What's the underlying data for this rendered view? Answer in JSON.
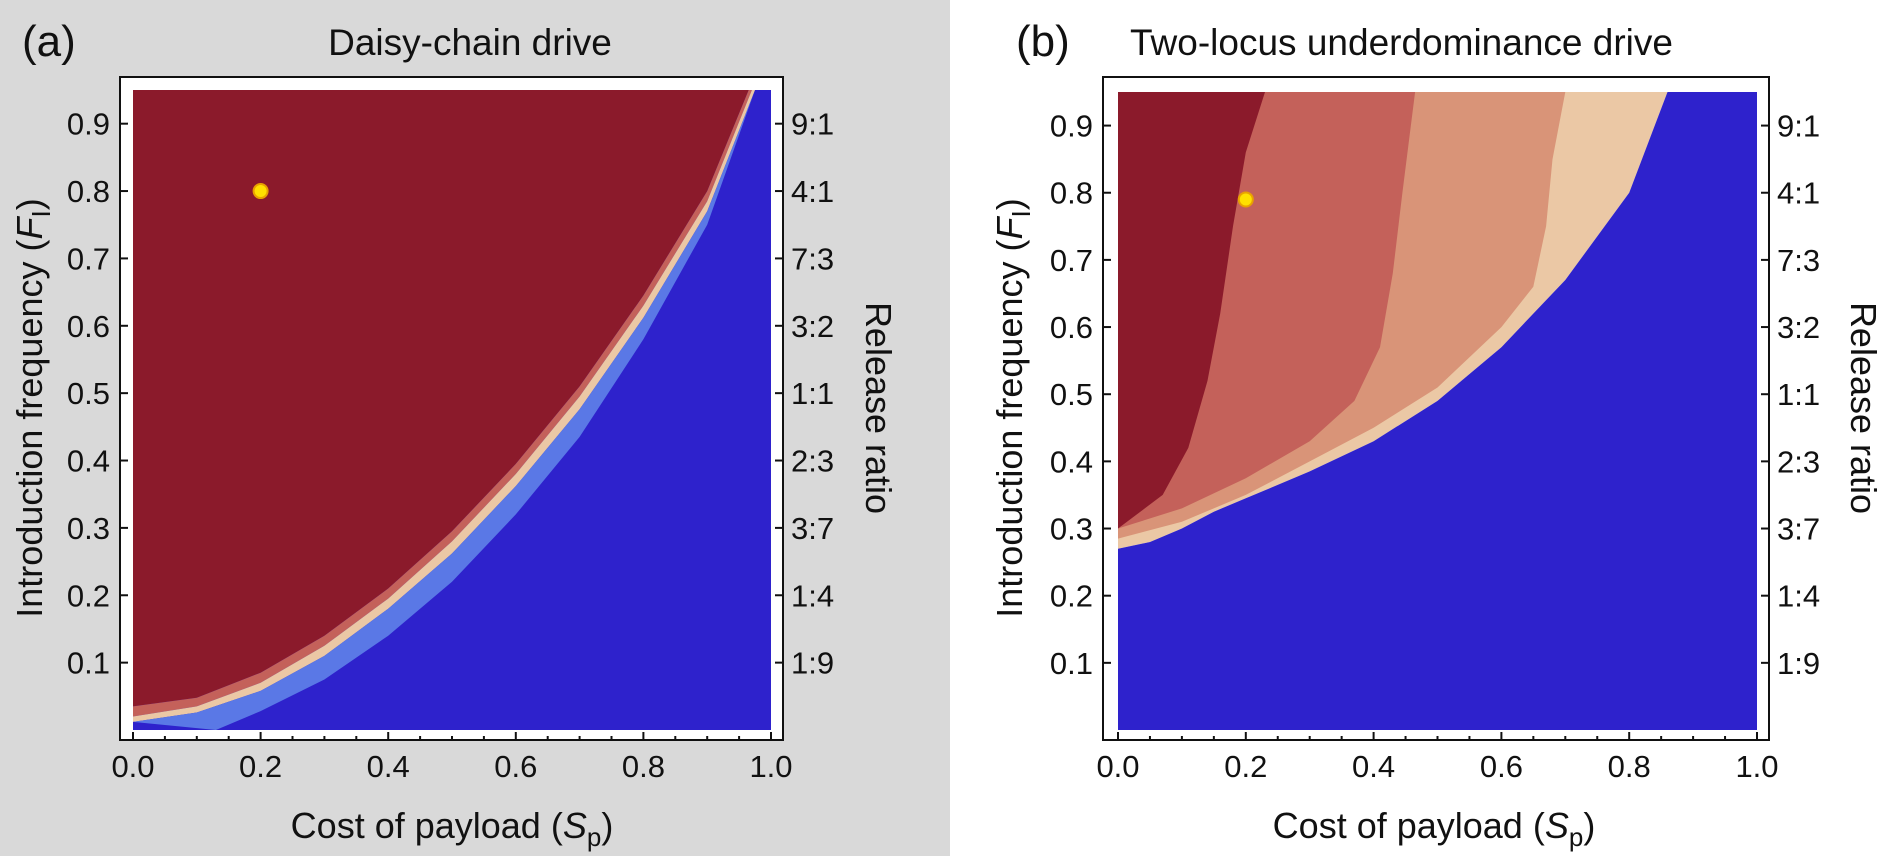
{
  "colors": {
    "panel_a_background": "#d9d9d9",
    "panel_b_background": "#ffffff",
    "band_darkest": "#8b1a2b",
    "band_medium": "#c4615a",
    "band_light": "#d99478",
    "band_lightest": "#ebc8a5",
    "loss_blue": "#2e22cc",
    "loss_blue_light": "#5a78e6",
    "marker": "#ffe000",
    "marker_edge": "#e8a200"
  },
  "chart_data": [
    {
      "type": "heatmap",
      "panel_label": "(a)",
      "title": "Daisy-chain drive",
      "xlabel_prefix": "Cost of payload (",
      "xlabel_symbol": "S",
      "xlabel_subscript": "p",
      "xlabel_suffix": ")",
      "ylabel_prefix": "Introduction frequency (",
      "ylabel_symbol": "F",
      "ylabel_subscript": "I",
      "ylabel_suffix": ")",
      "y2label": "Release ratio",
      "xlim": [
        0,
        1
      ],
      "ylim": [
        0,
        0.95
      ],
      "x_ticks": [
        0.0,
        0.2,
        0.4,
        0.6,
        0.8,
        1.0
      ],
      "x_tick_labels": [
        "0.0",
        "0.2",
        "0.4",
        "0.6",
        "0.8",
        "1.0"
      ],
      "y_ticks": [
        0.1,
        0.2,
        0.3,
        0.4,
        0.5,
        0.6,
        0.7,
        0.8,
        0.9
      ],
      "y_tick_labels": [
        "0.1",
        "0.2",
        "0.3",
        "0.4",
        "0.5",
        "0.6",
        "0.7",
        "0.8",
        "0.9"
      ],
      "y2_tick_labels": [
        "1:9",
        "1:4",
        "3:7",
        "2:3",
        "1:1",
        "3:2",
        "7:3",
        "4:1",
        "9:1"
      ],
      "regions": [
        {
          "color": "#8b1a2b",
          "upper": [
            [
              0,
              0.95
            ],
            [
              1,
              0.95
            ]
          ],
          "lower": [
            [
              0,
              0.035
            ],
            [
              0.1,
              0.048
            ],
            [
              0.2,
              0.085
            ],
            [
              0.3,
              0.14
            ],
            [
              0.4,
              0.21
            ],
            [
              0.5,
              0.295
            ],
            [
              0.6,
              0.395
            ],
            [
              0.7,
              0.51
            ],
            [
              0.8,
              0.645
            ],
            [
              0.9,
              0.8
            ],
            [
              0.965,
              0.95
            ]
          ]
        },
        {
          "color": "#c4615a",
          "upper": [
            [
              0,
              0.035
            ],
            [
              0.1,
              0.048
            ],
            [
              0.2,
              0.085
            ],
            [
              0.3,
              0.14
            ],
            [
              0.4,
              0.21
            ],
            [
              0.5,
              0.295
            ],
            [
              0.6,
              0.395
            ],
            [
              0.7,
              0.51
            ],
            [
              0.8,
              0.645
            ],
            [
              0.9,
              0.8
            ],
            [
              0.965,
              0.95
            ]
          ],
          "lower": [
            [
              0,
              0.02
            ],
            [
              0.1,
              0.035
            ],
            [
              0.2,
              0.07
            ],
            [
              0.3,
              0.125
            ],
            [
              0.4,
              0.195
            ],
            [
              0.5,
              0.28
            ],
            [
              0.6,
              0.38
            ],
            [
              0.7,
              0.495
            ],
            [
              0.8,
              0.63
            ],
            [
              0.9,
              0.785
            ],
            [
              0.97,
              0.95
            ]
          ]
        },
        {
          "color": "#ebc8a5",
          "upper": [
            [
              0,
              0.02
            ],
            [
              0.1,
              0.035
            ],
            [
              0.2,
              0.07
            ],
            [
              0.3,
              0.125
            ],
            [
              0.4,
              0.195
            ],
            [
              0.5,
              0.28
            ],
            [
              0.6,
              0.38
            ],
            [
              0.7,
              0.495
            ],
            [
              0.8,
              0.63
            ],
            [
              0.9,
              0.785
            ],
            [
              0.97,
              0.95
            ]
          ],
          "lower": [
            [
              0,
              0.012
            ],
            [
              0.1,
              0.026
            ],
            [
              0.2,
              0.058
            ],
            [
              0.3,
              0.11
            ],
            [
              0.4,
              0.18
            ],
            [
              0.5,
              0.262
            ],
            [
              0.6,
              0.362
            ],
            [
              0.7,
              0.476
            ],
            [
              0.8,
              0.612
            ],
            [
              0.9,
              0.77
            ],
            [
              0.975,
              0.95
            ]
          ]
        },
        {
          "color": "#5a78e6",
          "upper": [
            [
              0,
              0.012
            ],
            [
              0.1,
              0.026
            ],
            [
              0.2,
              0.058
            ],
            [
              0.3,
              0.11
            ],
            [
              0.4,
              0.18
            ],
            [
              0.5,
              0.262
            ],
            [
              0.6,
              0.362
            ],
            [
              0.7,
              0.476
            ],
            [
              0.8,
              0.612
            ],
            [
              0.9,
              0.77
            ],
            [
              0.975,
              0.95
            ]
          ],
          "lower": [
            [
              0.13,
              0.0
            ],
            [
              0.2,
              0.028
            ],
            [
              0.3,
              0.075
            ],
            [
              0.4,
              0.14
            ],
            [
              0.5,
              0.22
            ],
            [
              0.6,
              0.32
            ],
            [
              0.7,
              0.435
            ],
            [
              0.8,
              0.58
            ],
            [
              0.9,
              0.75
            ],
            [
              0.975,
              0.95
            ]
          ]
        }
      ],
      "marker": {
        "x": 0.2,
        "y": 0.8
      }
    },
    {
      "type": "heatmap",
      "panel_label": "(b)",
      "title": "Two-locus  underdominance drive",
      "xlabel_prefix": "Cost of payload (",
      "xlabel_symbol": "S",
      "xlabel_subscript": "p",
      "xlabel_suffix": ")",
      "ylabel_prefix": "Introduction frequency (",
      "ylabel_symbol": "F",
      "ylabel_subscript": "I",
      "ylabel_suffix": ")",
      "y2label": "Release ratio",
      "xlim": [
        0,
        1
      ],
      "ylim": [
        0,
        0.95
      ],
      "x_ticks": [
        0.0,
        0.2,
        0.4,
        0.6,
        0.8,
        1.0
      ],
      "x_tick_labels": [
        "0.0",
        "0.2",
        "0.4",
        "0.6",
        "0.8",
        "1.0"
      ],
      "y_ticks": [
        0.1,
        0.2,
        0.3,
        0.4,
        0.5,
        0.6,
        0.7,
        0.8,
        0.9
      ],
      "y_tick_labels": [
        "0.1",
        "0.2",
        "0.3",
        "0.4",
        "0.5",
        "0.6",
        "0.7",
        "0.8",
        "0.9"
      ],
      "y2_tick_labels": [
        "1:9",
        "1:4",
        "3:7",
        "2:3",
        "1:1",
        "3:2",
        "7:3",
        "4:1",
        "9:1"
      ],
      "regions": [
        {
          "color": "#ebc8a5",
          "upper": [
            [
              0,
              0.95
            ],
            [
              1,
              0.95
            ]
          ],
          "lower": [
            [
              0,
              0.27
            ],
            [
              0.05,
              0.28
            ],
            [
              0.1,
              0.3
            ],
            [
              0.15,
              0.325
            ],
            [
              0.2,
              0.345
            ],
            [
              0.3,
              0.385
            ],
            [
              0.4,
              0.43
            ],
            [
              0.5,
              0.49
            ],
            [
              0.6,
              0.57
            ],
            [
              0.7,
              0.67
            ],
            [
              0.8,
              0.8
            ],
            [
              0.86,
              0.95
            ]
          ]
        },
        {
          "color": "#d99478",
          "upper": [
            [
              0,
              0.95
            ],
            [
              0.7,
              0.95
            ]
          ],
          "lower": [
            [
              0,
              0.285
            ],
            [
              0.1,
              0.31
            ],
            [
              0.2,
              0.35
            ],
            [
              0.3,
              0.4
            ],
            [
              0.4,
              0.45
            ],
            [
              0.5,
              0.51
            ],
            [
              0.6,
              0.6
            ],
            [
              0.65,
              0.66
            ],
            [
              0.67,
              0.75
            ],
            [
              0.68,
              0.85
            ],
            [
              0.7,
              0.95
            ]
          ]
        },
        {
          "color": "#c4615a",
          "upper": [
            [
              0,
              0.95
            ],
            [
              0.465,
              0.95
            ]
          ],
          "lower": [
            [
              0,
              0.3
            ],
            [
              0.1,
              0.33
            ],
            [
              0.2,
              0.375
            ],
            [
              0.3,
              0.43
            ],
            [
              0.37,
              0.49
            ],
            [
              0.41,
              0.57
            ],
            [
              0.43,
              0.68
            ],
            [
              0.445,
              0.8
            ],
            [
              0.465,
              0.95
            ]
          ]
        },
        {
          "color": "#8b1a2b",
          "upper": [
            [
              0,
              0.95
            ],
            [
              0.23,
              0.95
            ]
          ],
          "lower": [
            [
              0,
              0.3
            ],
            [
              0.07,
              0.35
            ],
            [
              0.11,
              0.42
            ],
            [
              0.14,
              0.52
            ],
            [
              0.16,
              0.62
            ],
            [
              0.18,
              0.75
            ],
            [
              0.2,
              0.86
            ],
            [
              0.23,
              0.95
            ]
          ]
        },
        {
          "color": "#2e22cc",
          "upper": [
            [
              0,
              0.27
            ],
            [
              0.05,
              0.28
            ],
            [
              0.1,
              0.3
            ],
            [
              0.15,
              0.325
            ],
            [
              0.2,
              0.345
            ],
            [
              0.3,
              0.385
            ],
            [
              0.4,
              0.43
            ],
            [
              0.5,
              0.49
            ],
            [
              0.6,
              0.57
            ],
            [
              0.7,
              0.67
            ],
            [
              0.8,
              0.8
            ],
            [
              0.86,
              0.95
            ],
            [
              1,
              0.95
            ]
          ],
          "lower": [
            [
              0,
              0.0
            ],
            [
              1,
              0.0
            ]
          ]
        }
      ],
      "marker": {
        "x": 0.2,
        "y": 0.79
      }
    }
  ]
}
